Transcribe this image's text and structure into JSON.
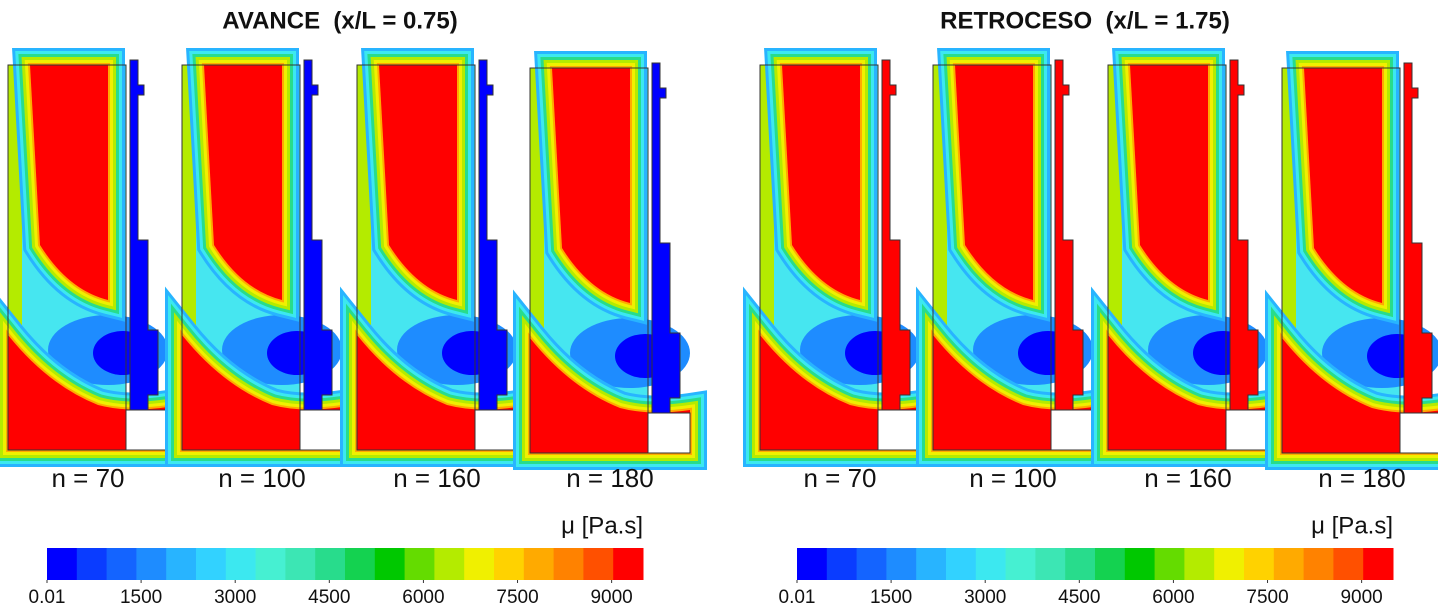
{
  "figures": [
    {
      "title": "AVANCE  (x/L = 0.75)",
      "blade_color": "#0000ff",
      "panels": [
        "n = 70",
        "n = 100",
        "n = 160",
        "n = 180"
      ],
      "colorbar": {
        "label": "μ [Pa.s]",
        "lim": [
          0.01,
          9500
        ],
        "ticks": [
          0.01,
          1500,
          3000,
          4500,
          6000,
          7500,
          9000
        ],
        "colors": [
          "#0000ff",
          "#0a3cff",
          "#1464ff",
          "#1e8cff",
          "#28b4ff",
          "#32d2ff",
          "#3ce8f0",
          "#46f0d2",
          "#3ce6b4",
          "#28dc8c",
          "#14d250",
          "#00c800",
          "#64dc00",
          "#b4eb00",
          "#f0f000",
          "#ffd200",
          "#ffaa00",
          "#ff8200",
          "#ff5000",
          "#ff0000"
        ]
      }
    },
    {
      "title": "RETROCESO  (x/L = 1.75)",
      "blade_color": "#ff0000",
      "panels": [
        "n = 70",
        "n = 100",
        "n = 160",
        "n = 180"
      ],
      "colorbar": {
        "label": "μ [Pa.s]",
        "lim": [
          0.01,
          9500
        ],
        "ticks": [
          0.01,
          1500,
          3000,
          4500,
          6000,
          7500,
          9000
        ],
        "colors": [
          "#0000ff",
          "#0a3cff",
          "#1464ff",
          "#1e8cff",
          "#28b4ff",
          "#32d2ff",
          "#3ce8f0",
          "#46f0d2",
          "#3ce6b4",
          "#28dc8c",
          "#14d250",
          "#00c800",
          "#64dc00",
          "#b4eb00",
          "#f0f000",
          "#ffd200",
          "#ffaa00",
          "#ff8200",
          "#ff5000",
          "#ff0000"
        ]
      }
    }
  ]
}
